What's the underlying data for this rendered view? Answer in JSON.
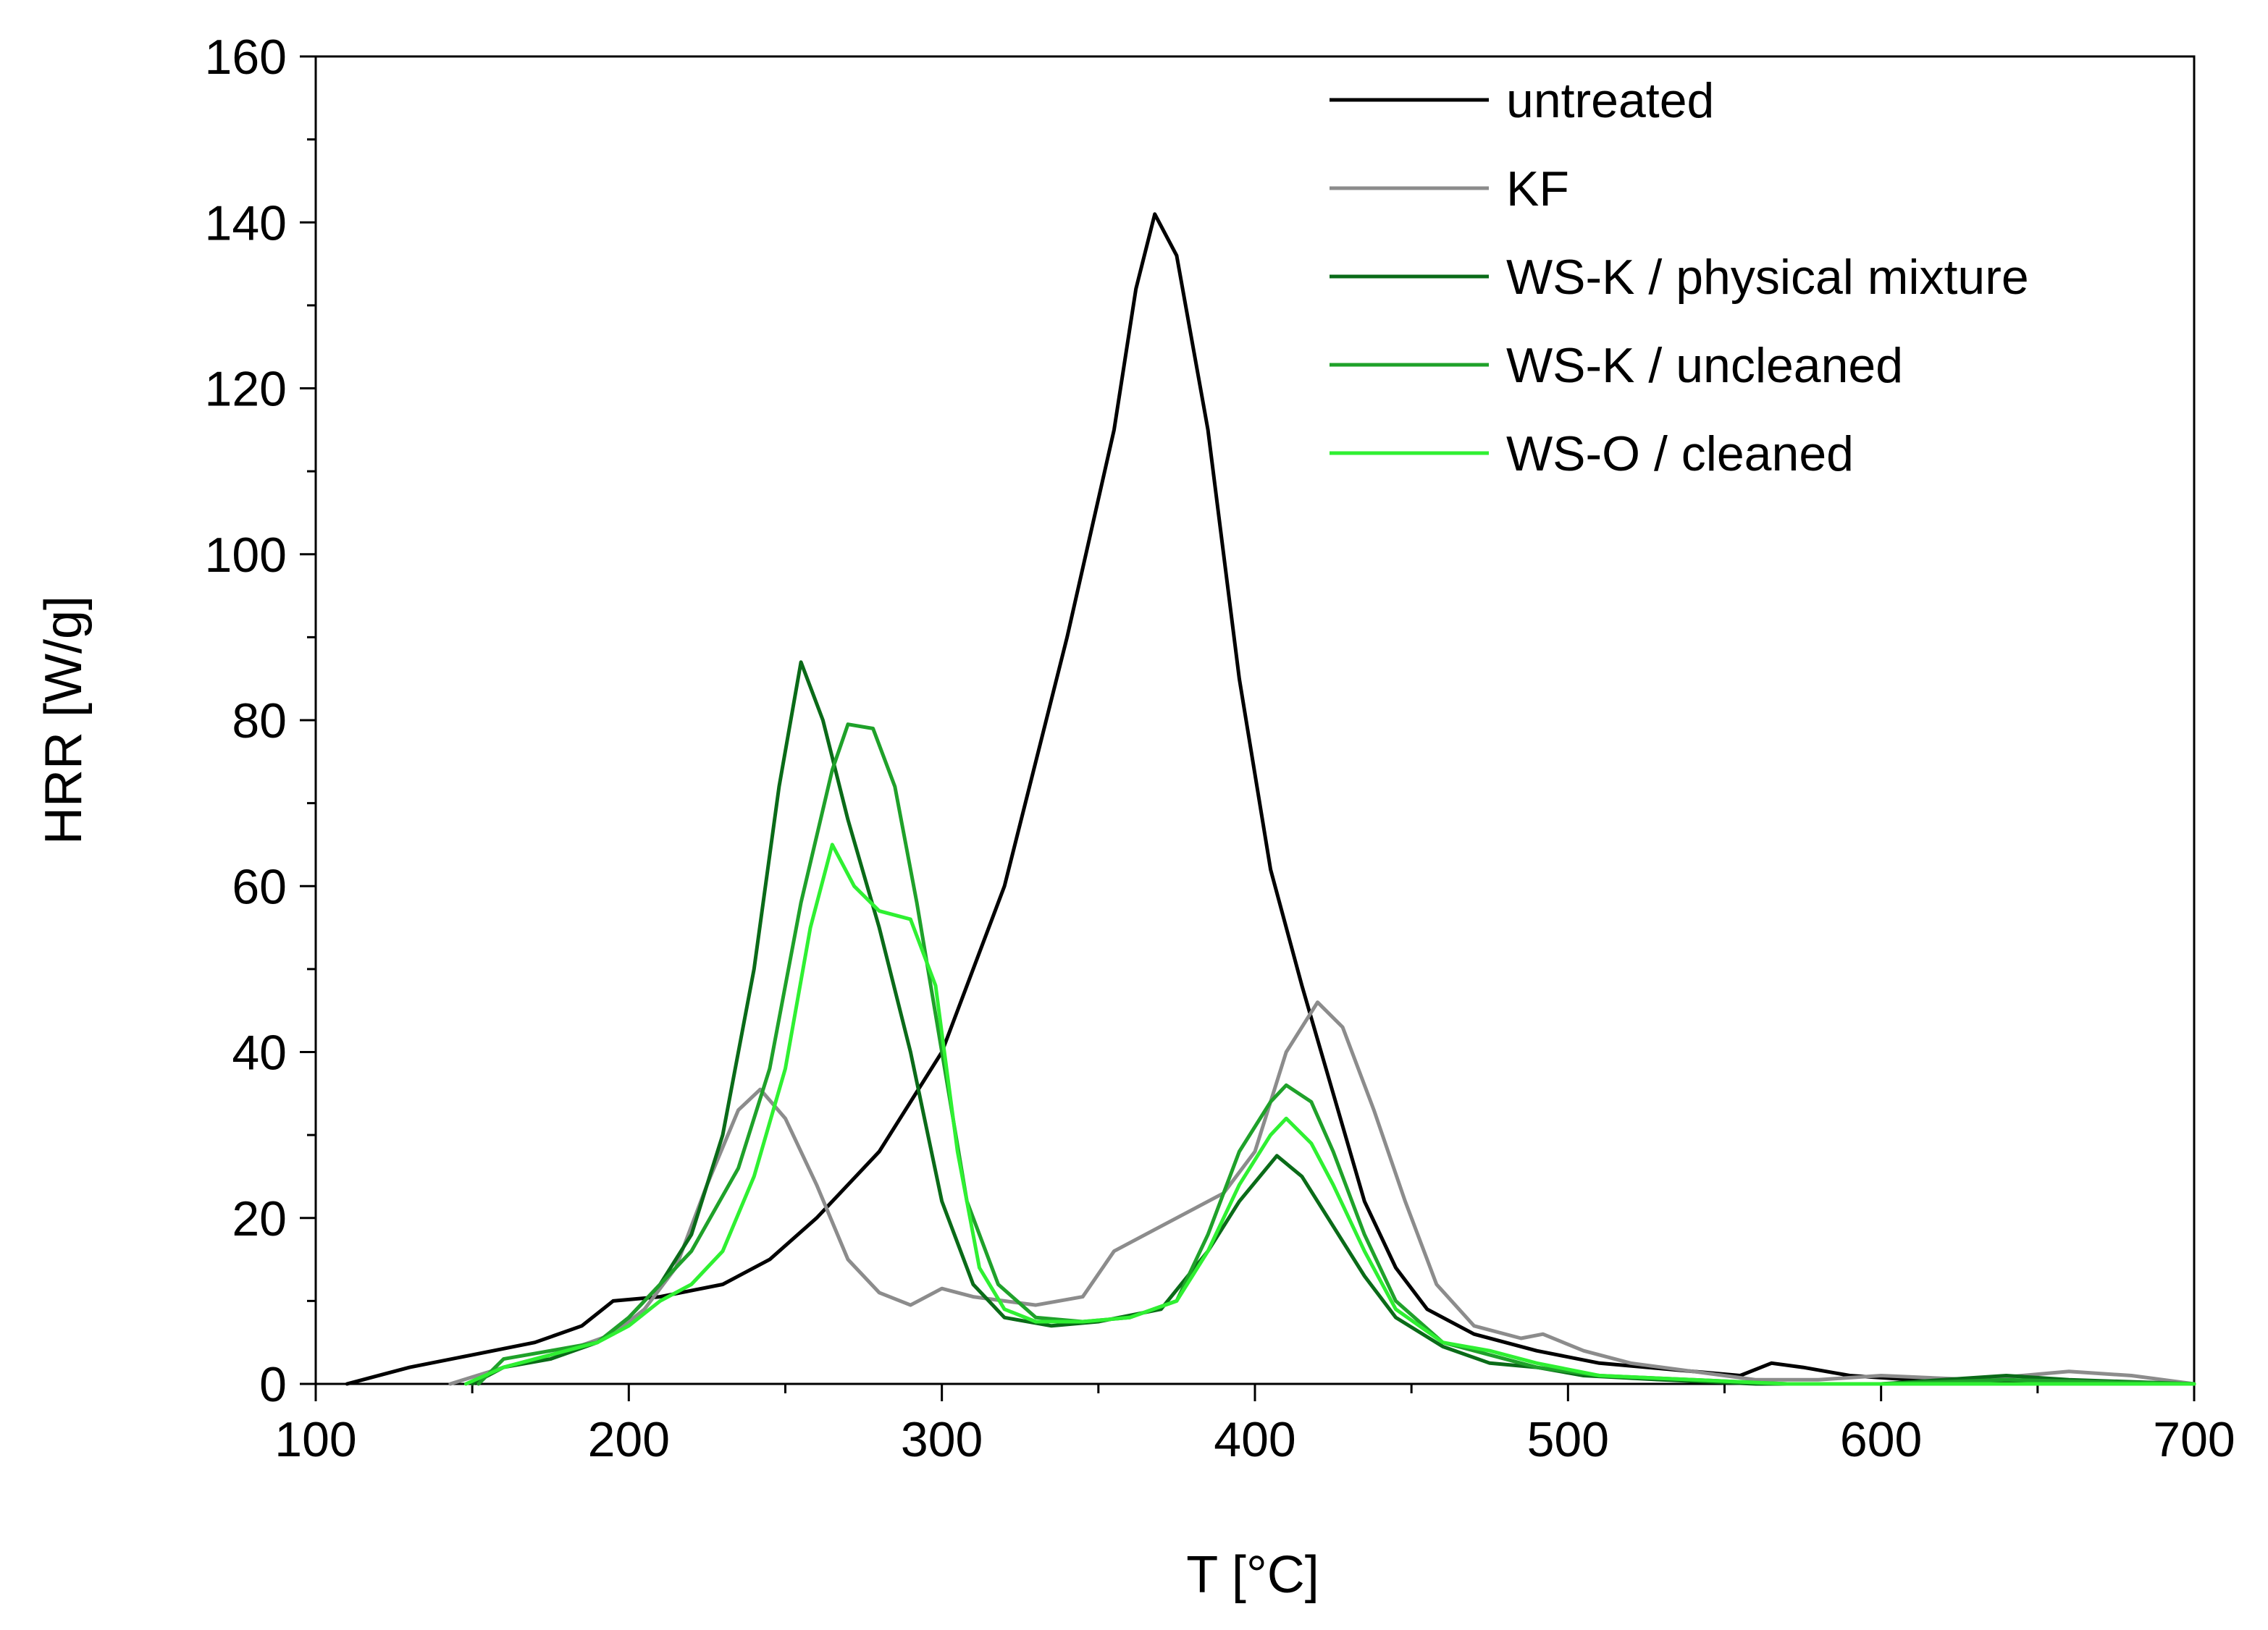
{
  "chart_data": {
    "type": "line",
    "title": "",
    "xlabel": "T [°C]",
    "ylabel": "HRR [W/g]",
    "xlim": [
      100,
      700
    ],
    "ylim": [
      0,
      160
    ],
    "x_ticks": [
      100,
      200,
      300,
      400,
      500,
      600,
      700
    ],
    "y_ticks": [
      0,
      20,
      40,
      60,
      80,
      100,
      120,
      140,
      160
    ],
    "x_tick_labels": [
      "100",
      "200",
      "300",
      "400",
      "500",
      "600",
      "700"
    ],
    "y_tick_labels": [
      "0",
      "20",
      "40",
      "60",
      "80",
      "100",
      "120",
      "140",
      "160"
    ],
    "grid": false,
    "legend_position": "top-right",
    "series": [
      {
        "name": "untreated",
        "color": "#000000",
        "points": [
          [
            110,
            0
          ],
          [
            130,
            2
          ],
          [
            150,
            3.5
          ],
          [
            170,
            5
          ],
          [
            185,
            7
          ],
          [
            195,
            10
          ],
          [
            210,
            10.5
          ],
          [
            230,
            12
          ],
          [
            245,
            15
          ],
          [
            260,
            20
          ],
          [
            280,
            28
          ],
          [
            300,
            40
          ],
          [
            320,
            60
          ],
          [
            340,
            90
          ],
          [
            355,
            115
          ],
          [
            362,
            132
          ],
          [
            368,
            141
          ],
          [
            375,
            136
          ],
          [
            385,
            115
          ],
          [
            395,
            85
          ],
          [
            405,
            62
          ],
          [
            415,
            48
          ],
          [
            425,
            35
          ],
          [
            435,
            22
          ],
          [
            445,
            14
          ],
          [
            455,
            9
          ],
          [
            470,
            6
          ],
          [
            490,
            4
          ],
          [
            510,
            2.5
          ],
          [
            540,
            1.5
          ],
          [
            555,
            1
          ],
          [
            565,
            2.5
          ],
          [
            575,
            2
          ],
          [
            590,
            1
          ],
          [
            610,
            0.5
          ],
          [
            640,
            0.2
          ],
          [
            700,
            0
          ]
        ]
      },
      {
        "name": "KF",
        "color": "#8c8c8c",
        "points": [
          [
            143,
            0
          ],
          [
            160,
            2
          ],
          [
            180,
            4
          ],
          [
            195,
            6
          ],
          [
            205,
            9
          ],
          [
            215,
            14
          ],
          [
            225,
            24
          ],
          [
            235,
            33
          ],
          [
            242,
            35.5
          ],
          [
            250,
            32
          ],
          [
            260,
            24
          ],
          [
            270,
            15
          ],
          [
            280,
            11
          ],
          [
            290,
            9.5
          ],
          [
            300,
            11.5
          ],
          [
            310,
            10.5
          ],
          [
            320,
            10
          ],
          [
            330,
            9.5
          ],
          [
            345,
            10.5
          ],
          [
            355,
            16
          ],
          [
            370,
            19
          ],
          [
            390,
            23
          ],
          [
            400,
            28
          ],
          [
            410,
            40
          ],
          [
            420,
            46
          ],
          [
            428,
            43
          ],
          [
            438,
            33
          ],
          [
            448,
            22
          ],
          [
            458,
            12
          ],
          [
            470,
            7
          ],
          [
            485,
            5.5
          ],
          [
            492,
            6
          ],
          [
            505,
            4
          ],
          [
            520,
            2.5
          ],
          [
            540,
            1.5
          ],
          [
            560,
            0.5
          ],
          [
            580,
            0.5
          ],
          [
            600,
            1
          ],
          [
            630,
            0.5
          ],
          [
            660,
            1.5
          ],
          [
            680,
            1
          ],
          [
            700,
            0
          ]
        ]
      },
      {
        "name": "WS-K / physical mixture",
        "color": "#0a6b18",
        "points": [
          [
            150,
            0
          ],
          [
            160,
            2
          ],
          [
            175,
            3
          ],
          [
            190,
            5
          ],
          [
            200,
            8
          ],
          [
            210,
            12
          ],
          [
            220,
            18
          ],
          [
            230,
            30
          ],
          [
            240,
            50
          ],
          [
            248,
            72
          ],
          [
            255,
            87
          ],
          [
            262,
            80
          ],
          [
            270,
            68
          ],
          [
            280,
            55
          ],
          [
            290,
            40
          ],
          [
            300,
            22
          ],
          [
            310,
            12
          ],
          [
            320,
            8
          ],
          [
            335,
            7
          ],
          [
            350,
            7.5
          ],
          [
            370,
            9
          ],
          [
            385,
            16
          ],
          [
            395,
            22
          ],
          [
            407,
            27.5
          ],
          [
            415,
            25
          ],
          [
            425,
            19
          ],
          [
            435,
            13
          ],
          [
            445,
            8
          ],
          [
            460,
            4.5
          ],
          [
            475,
            2.5
          ],
          [
            490,
            2
          ],
          [
            505,
            1
          ],
          [
            530,
            0.5
          ],
          [
            560,
            0
          ],
          [
            600,
            0
          ],
          [
            640,
            1
          ],
          [
            660,
            0.5
          ],
          [
            700,
            0
          ]
        ]
      },
      {
        "name": "WS-K / uncleaned",
        "color": "#1fa12a",
        "points": [
          [
            152,
            0
          ],
          [
            160,
            3
          ],
          [
            175,
            4
          ],
          [
            190,
            5
          ],
          [
            200,
            8
          ],
          [
            210,
            12
          ],
          [
            220,
            16
          ],
          [
            235,
            26
          ],
          [
            245,
            38
          ],
          [
            255,
            58
          ],
          [
            265,
            74
          ],
          [
            270,
            79.5
          ],
          [
            278,
            79
          ],
          [
            285,
            72
          ],
          [
            292,
            58
          ],
          [
            300,
            40
          ],
          [
            308,
            22
          ],
          [
            318,
            12
          ],
          [
            330,
            8
          ],
          [
            345,
            7.5
          ],
          [
            360,
            8
          ],
          [
            375,
            10
          ],
          [
            385,
            18
          ],
          [
            395,
            28
          ],
          [
            405,
            34
          ],
          [
            410,
            36
          ],
          [
            418,
            34
          ],
          [
            425,
            28
          ],
          [
            435,
            18
          ],
          [
            445,
            10
          ],
          [
            460,
            5
          ],
          [
            475,
            3.5
          ],
          [
            490,
            2
          ],
          [
            510,
            1
          ],
          [
            540,
            0.5
          ],
          [
            570,
            0
          ],
          [
            600,
            0
          ],
          [
            640,
            0.5
          ],
          [
            700,
            0
          ]
        ]
      },
      {
        "name": "WS-O / cleaned",
        "color": "#2ff032",
        "points": [
          [
            148,
            0
          ],
          [
            160,
            2
          ],
          [
            175,
            3.5
          ],
          [
            190,
            5
          ],
          [
            200,
            7
          ],
          [
            210,
            10
          ],
          [
            220,
            12
          ],
          [
            230,
            16
          ],
          [
            240,
            25
          ],
          [
            250,
            38
          ],
          [
            258,
            55
          ],
          [
            265,
            65
          ],
          [
            272,
            60
          ],
          [
            280,
            57
          ],
          [
            290,
            56
          ],
          [
            298,
            48
          ],
          [
            305,
            28
          ],
          [
            312,
            14
          ],
          [
            320,
            9
          ],
          [
            330,
            7.5
          ],
          [
            345,
            7.5
          ],
          [
            360,
            8
          ],
          [
            375,
            10
          ],
          [
            385,
            16
          ],
          [
            395,
            24
          ],
          [
            405,
            30
          ],
          [
            410,
            32
          ],
          [
            418,
            29
          ],
          [
            425,
            24
          ],
          [
            435,
            16
          ],
          [
            445,
            9
          ],
          [
            460,
            5
          ],
          [
            475,
            4
          ],
          [
            490,
            2.5
          ],
          [
            510,
            1
          ],
          [
            540,
            0.5
          ],
          [
            570,
            0
          ],
          [
            600,
            0
          ],
          [
            650,
            0
          ],
          [
            700,
            0
          ]
        ]
      }
    ]
  }
}
